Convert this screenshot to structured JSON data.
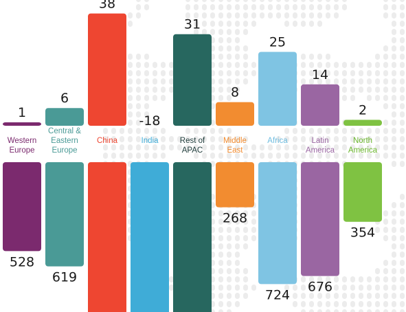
{
  "chart_data": {
    "type": "bar",
    "categories": [
      {
        "label": [
          "Western",
          "Europe"
        ],
        "color": "#7b2a6e",
        "label_color": "#7b2a6e",
        "top": 1,
        "bottom": 528
      },
      {
        "label": [
          "Central &",
          "Eastern",
          "Europe"
        ],
        "color": "#4a9a96",
        "label_color": "#4a9a96",
        "top": 6,
        "bottom": 619
      },
      {
        "label": [
          "China"
        ],
        "color": "#ee4631",
        "label_color": "#ee4631",
        "top": 38,
        "bottom": null
      },
      {
        "label": [
          "India"
        ],
        "color": "#3facd7",
        "label_color": "#3facd7",
        "top": -18,
        "bottom": null
      },
      {
        "label": [
          "Rest of",
          "APAC"
        ],
        "color": "#27675f",
        "label_color": "#1f3b3a",
        "top": 31,
        "bottom": null
      },
      {
        "label": [
          "Middle",
          "East"
        ],
        "color": "#f28c30",
        "label_color": "#f28c30",
        "top": 8,
        "bottom": 268
      },
      {
        "label": [
          "Africa"
        ],
        "color": "#7fc4e3",
        "label_color": "#6fbde0",
        "top": 25,
        "bottom": 724
      },
      {
        "label": [
          "Latin",
          "America"
        ],
        "color": "#9a66a2",
        "label_color": "#9a66a2",
        "top": 14,
        "bottom": 676
      },
      {
        "label": [
          "North",
          "America"
        ],
        "color": "#7fc242",
        "label_color": "#6bb62e",
        "top": 2,
        "bottom": 354
      }
    ]
  }
}
